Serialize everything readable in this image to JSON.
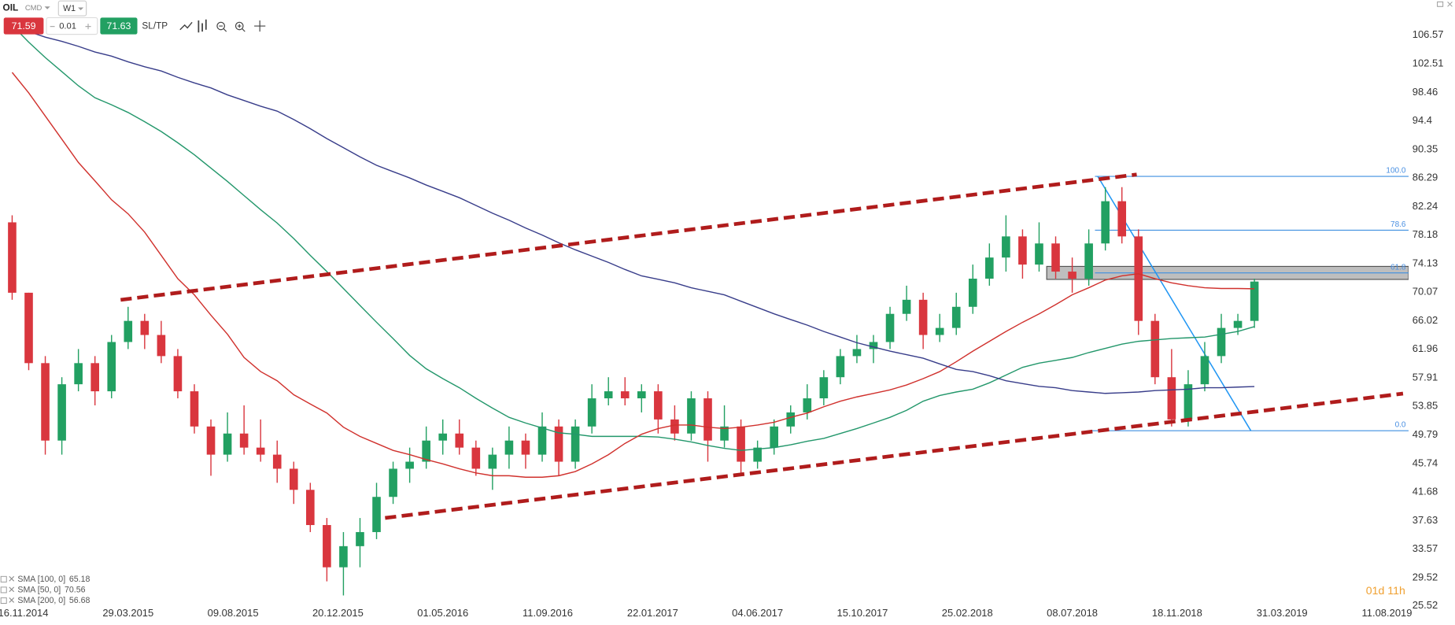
{
  "toolbar": {
    "symbol": "OIL",
    "market": "CMD",
    "timeframe": "W1",
    "sell": 71.59,
    "volume": 0.01,
    "buy": 71.63,
    "sl_tp": "SL/TP"
  },
  "status": {
    "countdown": "01d 11h"
  },
  "annotations": {
    "fib_levels": [
      "100.0",
      "78.6",
      "61.8",
      "0.0"
    ]
  },
  "chart_data": {
    "type": "candlestick",
    "x": [
      "02.11.2014",
      "23.11.2014",
      "14.12.2014",
      "04.01.2015",
      "25.01.2015",
      "15.02.2015",
      "08.03.2015",
      "29.03.2015",
      "19.04.2015",
      "10.05.2015",
      "31.05.2015",
      "21.06.2015",
      "12.07.2015",
      "02.08.2015",
      "23.08.2015",
      "13.09.2015",
      "04.10.2015",
      "25.10.2015",
      "15.11.2015",
      "06.12.2015",
      "27.12.2015",
      "17.01.2016",
      "07.02.2016",
      "28.02.2016",
      "20.03.2016",
      "10.04.2016",
      "01.05.2016",
      "22.05.2016",
      "12.06.2016",
      "03.07.2016",
      "24.07.2016",
      "14.08.2016",
      "04.09.2016",
      "25.09.2016",
      "16.10.2016",
      "06.11.2016",
      "27.11.2016",
      "18.12.2016",
      "08.01.2017",
      "29.01.2017",
      "19.02.2017",
      "12.03.2017",
      "02.04.2017",
      "23.04.2017",
      "14.05.2017",
      "04.06.2017",
      "25.06.2017",
      "16.07.2017",
      "06.08.2017",
      "27.08.2017",
      "17.09.2017",
      "08.10.2017",
      "29.10.2017",
      "19.11.2017",
      "10.12.2017",
      "31.12.2017",
      "21.01.2018",
      "11.02.2018",
      "04.03.2018",
      "25.03.2018",
      "15.04.2018",
      "06.05.2018",
      "27.05.2018",
      "17.06.2018",
      "08.07.2018",
      "29.07.2018",
      "19.08.2018",
      "09.09.2018",
      "30.09.2018",
      "21.10.2018",
      "11.11.2018",
      "02.12.2018",
      "23.12.2018",
      "13.01.2019",
      "03.02.2019",
      "24.02.2019"
    ],
    "open": [
      80,
      70,
      60,
      49,
      57,
      60,
      56,
      63,
      66,
      64,
      61,
      56,
      51,
      47,
      50,
      48,
      47,
      45,
      42,
      37,
      31,
      34,
      36,
      41,
      45,
      46,
      49,
      50,
      48,
      45,
      47,
      49,
      47,
      51,
      46,
      51,
      55,
      56,
      55,
      56,
      52,
      50,
      55,
      49,
      51,
      46,
      48,
      51,
      53,
      55,
      58,
      61,
      62,
      63,
      67,
      69,
      64,
      65,
      68,
      72,
      75,
      78,
      74,
      77,
      73,
      72,
      77,
      83,
      78,
      66,
      58,
      52,
      57,
      61,
      65,
      66
    ],
    "high": [
      81,
      70,
      61,
      58,
      62,
      61,
      64,
      68,
      67,
      66,
      62,
      57,
      52,
      53,
      54,
      52,
      49,
      46,
      43,
      38,
      36,
      38,
      43,
      46,
      48,
      51,
      52,
      52,
      49,
      48,
      51,
      50,
      53,
      52,
      52,
      57,
      58,
      58,
      57,
      57,
      54,
      56,
      56,
      54,
      52,
      49,
      52,
      54,
      57,
      59,
      62,
      64,
      64,
      68,
      71,
      70,
      67,
      70,
      74,
      77,
      81,
      79,
      80,
      78,
      75,
      79,
      85,
      85,
      79,
      67,
      62,
      59,
      63,
      67,
      67,
      72
    ],
    "low": [
      69,
      59,
      47,
      47,
      56,
      54,
      55,
      62,
      62,
      60,
      55,
      50,
      44,
      46,
      47,
      46,
      43,
      40,
      36,
      29,
      27,
      31,
      35,
      40,
      43,
      45,
      47,
      47,
      44,
      42,
      45,
      45,
      46,
      44,
      45,
      50,
      54,
      54,
      53,
      50,
      49,
      49,
      46,
      48,
      44,
      45,
      47,
      50,
      52,
      54,
      57,
      60,
      60,
      62,
      66,
      62,
      63,
      64,
      67,
      71,
      73,
      72,
      73,
      72,
      70,
      71,
      76,
      77,
      64,
      57,
      51,
      51,
      56,
      60,
      64,
      65
    ],
    "close": [
      70,
      60,
      49,
      57,
      60,
      56,
      63,
      66,
      64,
      61,
      56,
      51,
      47,
      50,
      48,
      47,
      45,
      42,
      37,
      31,
      34,
      36,
      41,
      45,
      46,
      49,
      50,
      48,
      45,
      47,
      49,
      47,
      51,
      46,
      51,
      55,
      56,
      55,
      56,
      52,
      50,
      55,
      49,
      51,
      46,
      48,
      51,
      53,
      55,
      58,
      61,
      62,
      63,
      67,
      69,
      64,
      65,
      68,
      72,
      75,
      78,
      74,
      77,
      73,
      72,
      77,
      83,
      78,
      66,
      58,
      52,
      57,
      61,
      65,
      66,
      71.59
    ],
    "up_color": "#22a062",
    "down_color": "#d9363e",
    "series": [
      {
        "name": "SMA [100, 0]",
        "color": "#23976b",
        "values": [
          108.0,
          105.6,
          103.4,
          101.4,
          99.4,
          97.7,
          96.7,
          95.6,
          94.3,
          92.9,
          91.3,
          89.6,
          87.7,
          85.8,
          83.8,
          81.8,
          79.9,
          77.7,
          75.3,
          73.0,
          70.6,
          68.2,
          65.8,
          63.5,
          61.1,
          59.2,
          57.8,
          56.5,
          55.0,
          53.6,
          52.3,
          51.5,
          50.8,
          50.1,
          49.9,
          49.6,
          49.6,
          49.6,
          49.6,
          49.5,
          49.2,
          48.8,
          48.3,
          47.9,
          47.6,
          47.8,
          48.0,
          48.4,
          48.9,
          49.3,
          50.0,
          50.7,
          51.5,
          52.3,
          53.3,
          54.6,
          55.4,
          55.9,
          56.3,
          57.2,
          58.3,
          59.4,
          60.0,
          60.4,
          60.8,
          61.5,
          62.1,
          62.7,
          63.1,
          63.3,
          63.5,
          63.6,
          63.7,
          64.1,
          64.5,
          65.18
        ]
      },
      {
        "name": "SMA [50, 0]",
        "color": "#d0312d",
        "values": [
          101.3,
          98.4,
          95.1,
          91.8,
          88.5,
          85.9,
          83.2,
          81.2,
          78.6,
          75.3,
          72.0,
          69.7,
          66.8,
          64.1,
          60.8,
          58.8,
          57.5,
          55.5,
          54.2,
          52.9,
          50.9,
          49.6,
          48.6,
          47.6,
          47.0,
          46.3,
          45.7,
          45.0,
          44.4,
          44.0,
          44.0,
          43.8,
          43.8,
          44.0,
          44.6,
          45.7,
          47.0,
          48.6,
          49.9,
          50.7,
          51.2,
          51.2,
          50.9,
          50.7,
          50.9,
          51.2,
          51.6,
          52.3,
          52.9,
          53.8,
          54.6,
          55.2,
          55.7,
          56.2,
          56.9,
          57.8,
          58.8,
          60.2,
          61.7,
          63.1,
          64.5,
          65.8,
          67.0,
          68.3,
          69.7,
          70.7,
          71.8,
          72.4,
          72.7,
          72.0,
          71.4,
          71.0,
          70.7,
          70.6,
          70.6,
          70.56
        ]
      },
      {
        "name": "SMA [200, 0]",
        "color": "#383d8a",
        "values": [
          107.8,
          107.1,
          106.3,
          105.7,
          105.0,
          104.2,
          103.6,
          102.8,
          102.1,
          101.5,
          100.6,
          99.8,
          99.1,
          98.1,
          97.3,
          96.5,
          95.8,
          94.6,
          93.3,
          91.9,
          90.6,
          89.3,
          88.1,
          87.2,
          86.3,
          85.3,
          84.4,
          83.5,
          82.4,
          81.3,
          80.3,
          79.2,
          78.2,
          77.1,
          76.1,
          75.2,
          74.3,
          73.3,
          72.4,
          71.9,
          71.4,
          70.7,
          70.2,
          69.7,
          68.8,
          67.9,
          67.0,
          66.2,
          65.4,
          64.5,
          63.7,
          62.9,
          62.3,
          61.7,
          61.2,
          60.7,
          59.9,
          59.1,
          58.8,
          58.2,
          57.5,
          57.1,
          56.7,
          56.5,
          56.1,
          55.9,
          55.7,
          55.8,
          55.9,
          56.1,
          56.2,
          56.3,
          56.5,
          56.5,
          56.6,
          56.68
        ]
      }
    ],
    "xticks": [
      "16.11.2014",
      "29.03.2015",
      "09.08.2015",
      "20.12.2015",
      "01.05.2016",
      "11.09.2016",
      "22.01.2017",
      "04.06.2017",
      "15.10.2017",
      "25.02.2018",
      "08.07.2018",
      "18.11.2018",
      "31.03.2019",
      "11.08.2019"
    ],
    "ylim": [
      25.52,
      106.57
    ],
    "yticks": [
      106.57,
      102.51,
      98.46,
      94.4,
      90.35,
      86.29,
      82.24,
      78.18,
      74.13,
      70.07,
      66.02,
      61.96,
      57.91,
      53.85,
      49.79,
      45.74,
      41.68,
      37.63,
      33.57,
      29.52,
      25.52
    ]
  }
}
